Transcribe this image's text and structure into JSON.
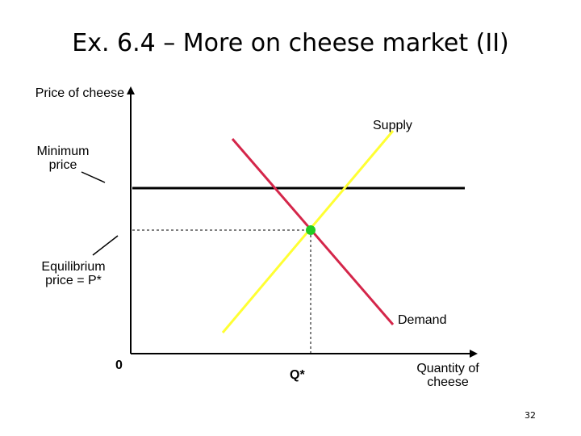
{
  "slide": {
    "title": "Ex. 6.4 – More on cheese market (II)",
    "number": "32"
  },
  "axes": {
    "y_label": "Price of cheese",
    "x_label_line1": "Quantity of",
    "x_label_line2": "cheese",
    "origin_label": "0",
    "q_star_label": "Q*"
  },
  "curves": {
    "supply_label": "Supply",
    "demand_label": "Demand",
    "supply_color": "#ffff33",
    "demand_color": "#d4264a",
    "equilibrium_color": "#22cc22"
  },
  "annotations": {
    "minimum_price_line1": "Minimum",
    "minimum_price_line2": "price",
    "equilibrium_line1": "Equilibrium",
    "equilibrium_line2": "price = P*"
  }
}
